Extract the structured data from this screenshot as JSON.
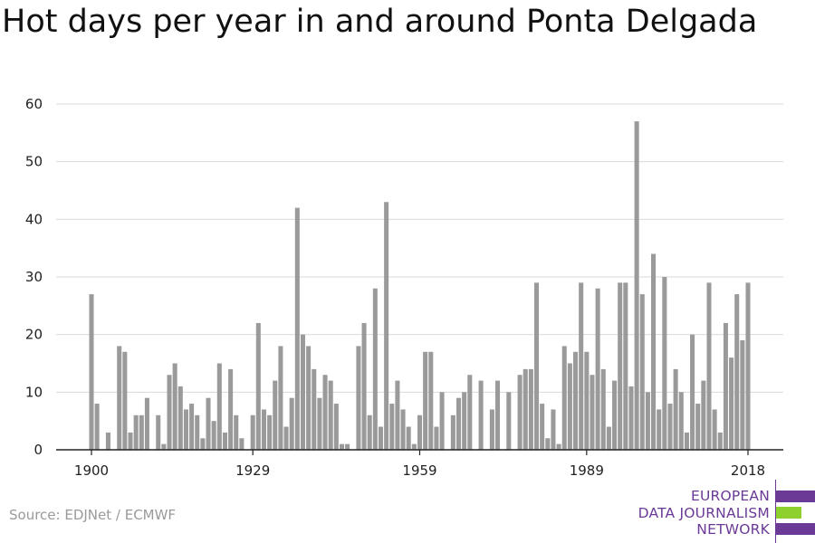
{
  "title": "Hot days per year in and around Ponta Delgada",
  "source": "Source: EDJNet / ECMWF",
  "logo": {
    "line1": "EUROPEAN",
    "line2": "DATA JOURNALISM",
    "line3": "NETWORK",
    "colors": {
      "purple": "#6a3a96",
      "green": "#8ed12e"
    }
  },
  "chart_data": {
    "type": "bar",
    "title": "",
    "xlabel": "",
    "ylabel": "",
    "xlim": [
      1900,
      2018
    ],
    "ylim": [
      0,
      60
    ],
    "yticks": [
      0,
      10,
      20,
      30,
      40,
      50,
      60
    ],
    "xticks": [
      1900,
      1929,
      1959,
      1989,
      2018
    ],
    "grid": true,
    "bar_color": "#9a9a9a",
    "x": [
      1900,
      1901,
      1902,
      1903,
      1904,
      1905,
      1906,
      1907,
      1908,
      1909,
      1910,
      1911,
      1912,
      1913,
      1914,
      1915,
      1916,
      1917,
      1918,
      1919,
      1920,
      1921,
      1922,
      1923,
      1924,
      1925,
      1926,
      1927,
      1928,
      1929,
      1930,
      1931,
      1932,
      1933,
      1934,
      1935,
      1936,
      1937,
      1938,
      1939,
      1940,
      1941,
      1942,
      1943,
      1944,
      1945,
      1946,
      1947,
      1948,
      1949,
      1950,
      1951,
      1952,
      1953,
      1954,
      1955,
      1956,
      1957,
      1958,
      1959,
      1960,
      1961,
      1962,
      1963,
      1964,
      1965,
      1966,
      1967,
      1968,
      1969,
      1970,
      1971,
      1972,
      1973,
      1974,
      1975,
      1976,
      1977,
      1978,
      1979,
      1980,
      1981,
      1982,
      1983,
      1984,
      1985,
      1986,
      1987,
      1988,
      1989,
      1990,
      1991,
      1992,
      1993,
      1994,
      1995,
      1996,
      1997,
      1998,
      1999,
      2000,
      2001,
      2002,
      2003,
      2004,
      2005,
      2006,
      2007,
      2008,
      2009,
      2010,
      2011,
      2012,
      2013,
      2014,
      2015,
      2016,
      2017,
      2018
    ],
    "values": [
      27,
      8,
      0,
      3,
      0,
      18,
      17,
      3,
      6,
      6,
      9,
      0,
      6,
      1,
      13,
      15,
      11,
      7,
      8,
      6,
      2,
      9,
      5,
      15,
      3,
      14,
      6,
      2,
      0,
      6,
      22,
      7,
      6,
      12,
      18,
      4,
      9,
      42,
      20,
      18,
      14,
      9,
      13,
      12,
      8,
      1,
      1,
      0,
      18,
      22,
      6,
      28,
      4,
      43,
      8,
      12,
      7,
      4,
      1,
      6,
      17,
      17,
      4,
      10,
      0,
      6,
      9,
      10,
      13,
      0,
      12,
      0,
      7,
      12,
      0,
      10,
      0,
      13,
      14,
      14,
      29,
      8,
      2,
      7,
      1,
      18,
      15,
      17,
      29,
      17,
      13,
      28,
      14,
      4,
      12,
      29,
      29,
      11,
      57,
      27,
      10,
      34,
      7,
      30,
      8,
      14,
      10,
      3,
      20,
      8,
      12,
      29,
      7,
      3,
      22,
      16,
      27,
      19,
      29
    ]
  }
}
